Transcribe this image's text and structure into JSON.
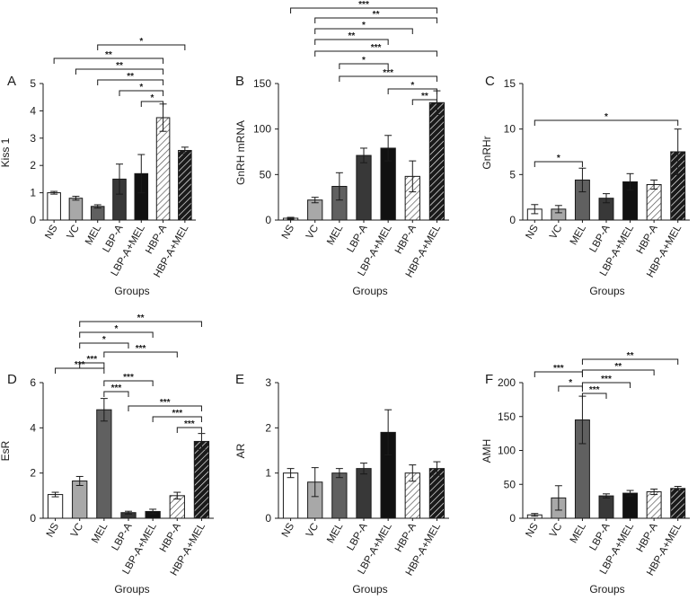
{
  "chart_data": [
    {
      "type": "bar",
      "panel": "A",
      "ylabel": "Kiss 1",
      "xlabel": "Groups",
      "ylim": [
        0,
        5
      ],
      "yticks": [
        "0",
        "1",
        "2",
        "3",
        "4",
        "5"
      ],
      "categories": [
        "NS",
        "VC",
        "MEL",
        "LBP-A",
        "LBP-A+MEL",
        "HBP-A",
        "HBP-A+MEL"
      ],
      "values": [
        1.0,
        0.8,
        0.5,
        1.5,
        1.7,
        3.75,
        2.55
      ],
      "errors": [
        0.05,
        0.07,
        0.06,
        0.55,
        0.7,
        0.5,
        0.12
      ],
      "significance": [
        {
          "from": 2,
          "to": 6,
          "label": "*"
        },
        {
          "from": 0,
          "to": 5,
          "label": "**"
        },
        {
          "from": 1,
          "to": 5,
          "label": "**"
        },
        {
          "from": 2,
          "to": 5,
          "label": "**"
        },
        {
          "from": 3,
          "to": 5,
          "label": "*"
        },
        {
          "from": 4,
          "to": 5,
          "label": "*"
        }
      ]
    },
    {
      "type": "bar",
      "panel": "B",
      "ylabel": "GnRH mRNA",
      "xlabel": "Groups",
      "ylim": [
        0,
        150
      ],
      "yticks": [
        "0",
        "50",
        "100",
        "150"
      ],
      "categories": [
        "NS",
        "VC",
        "MEL",
        "LBP-A",
        "LBP-A+MEL",
        "HBP-A",
        "HBP-A+MEL"
      ],
      "values": [
        2,
        22,
        37,
        71,
        79,
        48,
        129
      ],
      "errors": [
        1,
        3,
        15,
        8,
        14,
        17,
        13
      ],
      "significance": [
        {
          "from": 0,
          "to": 6,
          "label": "***"
        },
        {
          "from": 1,
          "to": 6,
          "label": "**"
        },
        {
          "from": 1,
          "to": 5,
          "label": "*"
        },
        {
          "from": 1,
          "to": 4,
          "label": "**"
        },
        {
          "from": 1,
          "to": 6,
          "label": "***"
        },
        {
          "from": 2,
          "to": 4,
          "label": "*"
        },
        {
          "from": 2,
          "to": 6,
          "label": "***"
        },
        {
          "from": 4,
          "to": 6,
          "label": "*"
        },
        {
          "from": 5,
          "to": 6,
          "label": "**"
        }
      ]
    },
    {
      "type": "bar",
      "panel": "C",
      "ylabel": "GnRHr",
      "xlabel": "Groups",
      "ylim": [
        0,
        15
      ],
      "yticks": [
        "0",
        "5",
        "10",
        "15"
      ],
      "categories": [
        "NS",
        "VC",
        "MEL",
        "LBP-A",
        "LBP-A+MEL",
        "HBP-A",
        "HBP-A+MEL"
      ],
      "values": [
        1.2,
        1.2,
        4.4,
        2.4,
        4.2,
        3.9,
        7.5
      ],
      "errors": [
        0.5,
        0.4,
        1.3,
        0.5,
        0.9,
        0.5,
        2.5
      ],
      "significance": [
        {
          "from": 0,
          "to": 6,
          "label": "*"
        },
        {
          "from": 0,
          "to": 2,
          "label": "*"
        }
      ]
    },
    {
      "type": "bar",
      "panel": "D",
      "ylabel": "EsR",
      "xlabel": "Groups",
      "ylim": [
        0,
        6
      ],
      "yticks": [
        "0",
        "2",
        "4",
        "6"
      ],
      "categories": [
        "NS",
        "VC",
        "MEL",
        "LBP-A",
        "LBP-A+MEL",
        "HBP-A",
        "HBP-A+MEL"
      ],
      "values": [
        1.05,
        1.65,
        4.8,
        0.25,
        0.3,
        1.0,
        3.4
      ],
      "errors": [
        0.1,
        0.2,
        0.5,
        0.06,
        0.1,
        0.15,
        0.35
      ],
      "significance": [
        {
          "from": 1,
          "to": 6,
          "label": "**"
        },
        {
          "from": 1,
          "to": 4,
          "label": "*"
        },
        {
          "from": 1,
          "to": 3,
          "label": "*"
        },
        {
          "from": 2,
          "to": 5,
          "label": "***"
        },
        {
          "from": 0,
          "to": 2,
          "label": "***"
        },
        {
          "from": 1,
          "to": 2,
          "label": "***"
        },
        {
          "from": 2,
          "to": 4,
          "label": "***"
        },
        {
          "from": 2,
          "to": 3,
          "label": "***"
        },
        {
          "from": 3,
          "to": 6,
          "label": "***"
        },
        {
          "from": 4,
          "to": 6,
          "label": "***"
        },
        {
          "from": 5,
          "to": 6,
          "label": "***"
        }
      ]
    },
    {
      "type": "bar",
      "panel": "E",
      "ylabel": "AR",
      "xlabel": "Groups",
      "ylim": [
        0,
        3
      ],
      "yticks": [
        "0",
        "1",
        "2",
        "3"
      ],
      "categories": [
        "NS",
        "VC",
        "MEL",
        "LBP-A",
        "LBP-A+MEL",
        "HBP-A",
        "HBP-A+MEL"
      ],
      "values": [
        1.0,
        0.8,
        1.0,
        1.1,
        1.9,
        1.0,
        1.1
      ],
      "errors": [
        0.1,
        0.32,
        0.1,
        0.12,
        0.5,
        0.18,
        0.15
      ],
      "significance": []
    },
    {
      "type": "bar",
      "panel": "F",
      "ylabel": "AMH",
      "xlabel": "Groups",
      "ylim": [
        0,
        200
      ],
      "yticks": [
        "0",
        "50",
        "100",
        "150",
        "200"
      ],
      "categories": [
        "NS",
        "VC",
        "MEL",
        "LBP-A",
        "LBP-A+MEL",
        "HBP-A",
        "HBP-A+MEL"
      ],
      "values": [
        5,
        30,
        145,
        33,
        37,
        39,
        44
      ],
      "errors": [
        2,
        18,
        35,
        3,
        4,
        4,
        3
      ],
      "significance": [
        {
          "from": 2,
          "to": 6,
          "label": "**"
        },
        {
          "from": 2,
          "to": 5,
          "label": "**"
        },
        {
          "from": 0,
          "to": 2,
          "label": "***"
        },
        {
          "from": 2,
          "to": 4,
          "label": "***"
        },
        {
          "from": 1,
          "to": 2,
          "label": "*"
        },
        {
          "from": 2,
          "to": 3,
          "label": "***"
        }
      ]
    }
  ],
  "colors": {
    "NS": "#ffffff",
    "VC": "#a8a8a8",
    "MEL": "#606060",
    "LBP-A": "#383838",
    "LBP-A+MEL": "#111111",
    "HBP-A": "#ffffff",
    "HBP-A+MEL": "#1a1a1a",
    "outline": "#1a1a1a",
    "stripe_light": "#555555",
    "stripe_dark": "#ffffff"
  }
}
